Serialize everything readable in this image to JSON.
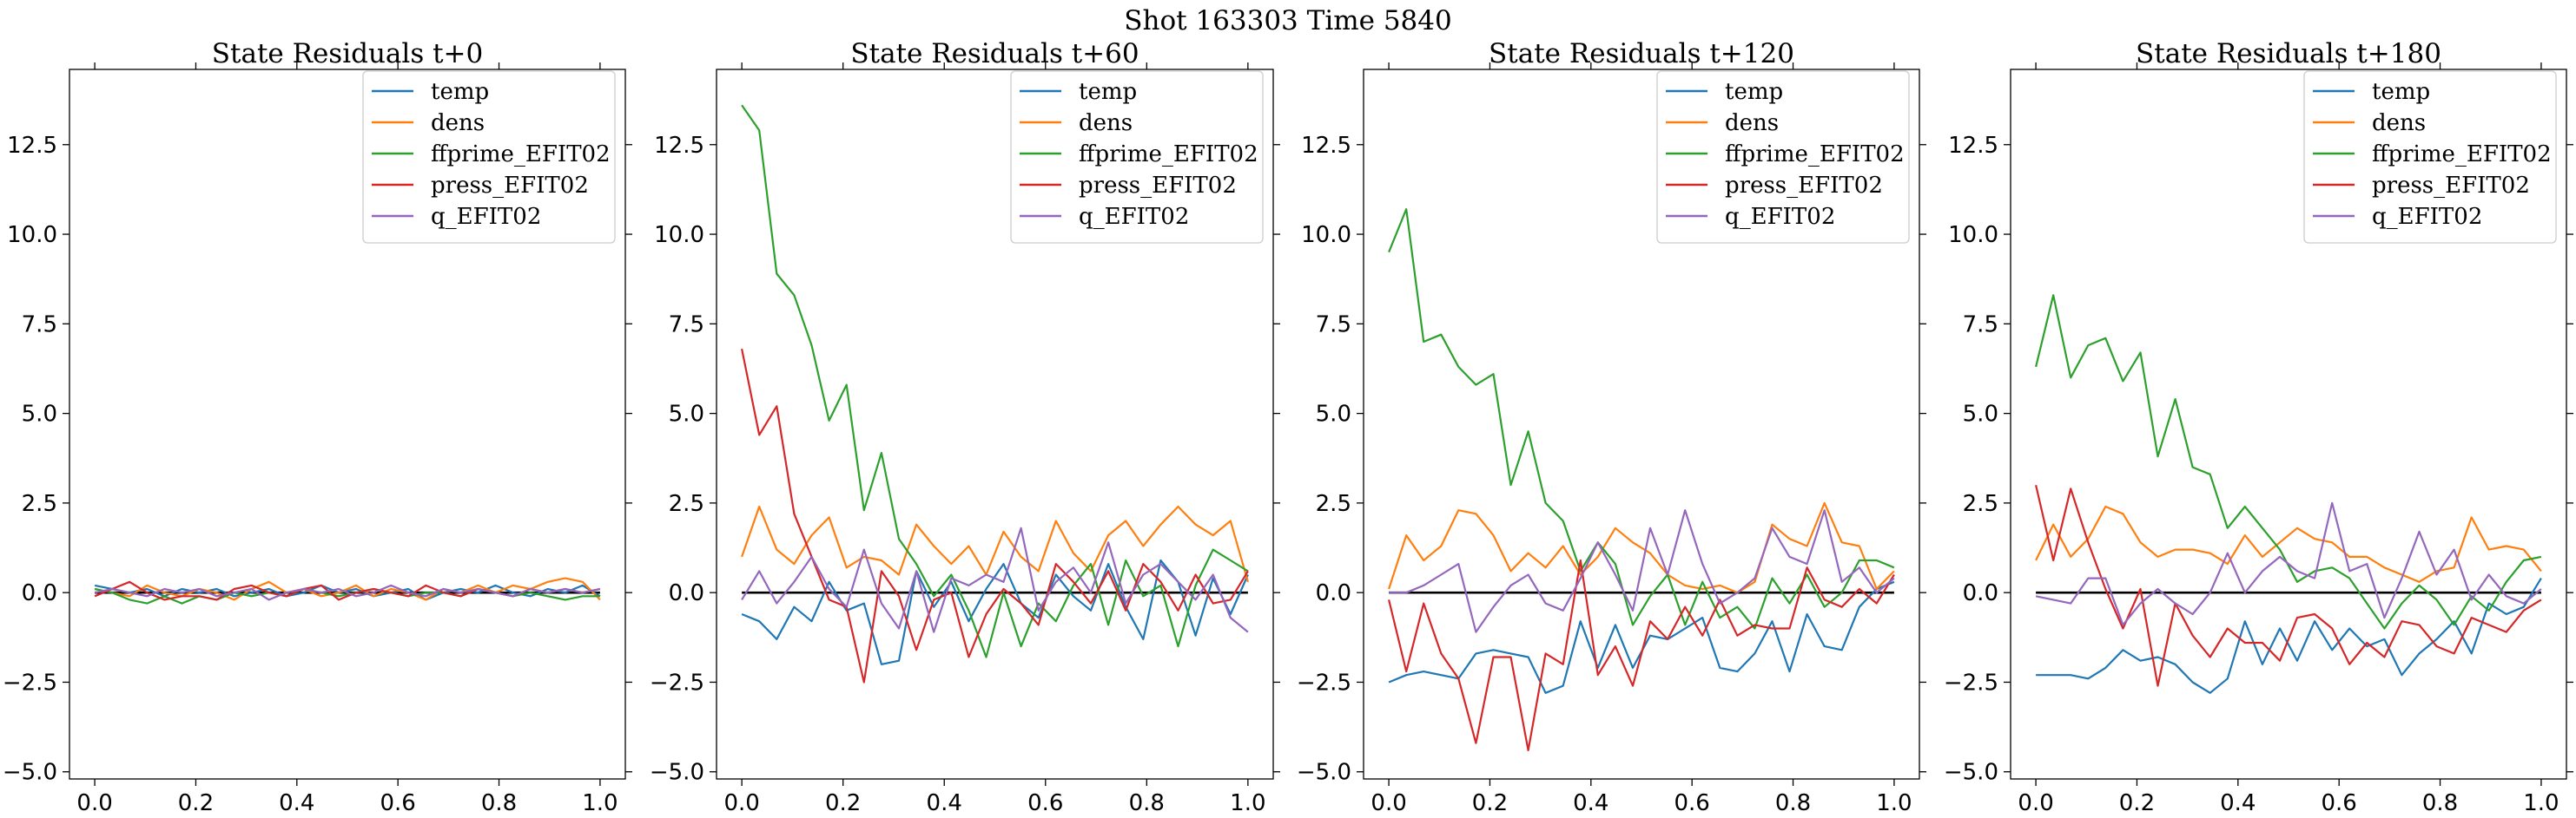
{
  "figure_title": "Shot 163303   Time 5840",
  "colors": {
    "temp": "#1f77b4",
    "dens": "#ff7f0e",
    "ffprime_EFIT02": "#2ca02c",
    "press_EFIT02": "#d62728",
    "q_EFIT02": "#9467bd",
    "zero_line": "#000000"
  },
  "chart_data": [
    {
      "type": "line",
      "title": "State Residuals t+0",
      "xlim": [
        -0.05,
        1.05
      ],
      "ylim": [
        -5.2,
        14.6
      ],
      "xticks": [
        0.0,
        0.2,
        0.4,
        0.6,
        0.8,
        1.0
      ],
      "xtick_labels": [
        "0.0",
        "0.2",
        "0.4",
        "0.6",
        "0.8",
        "1.0"
      ],
      "yticks": [
        -5.0,
        -2.5,
        0.0,
        2.5,
        5.0,
        7.5,
        10.0,
        12.5
      ],
      "ytick_labels": [
        "−5.0",
        "−2.5",
        "0.0",
        "2.5",
        "5.0",
        "7.5",
        "10.0",
        "12.5"
      ],
      "legend_position": "top-right",
      "zero_line": true,
      "x": [
        0.0,
        0.0345,
        0.069,
        0.1034,
        0.1379,
        0.1724,
        0.2069,
        0.2414,
        0.2759,
        0.3103,
        0.3448,
        0.3793,
        0.4138,
        0.4483,
        0.4828,
        0.5172,
        0.5517,
        0.5862,
        0.6207,
        0.6552,
        0.6897,
        0.7241,
        0.7586,
        0.7931,
        0.8276,
        0.8621,
        0.8966,
        0.931,
        0.9655,
        1.0
      ],
      "series": [
        {
          "name": "temp",
          "values": [
            0.2,
            0.1,
            0.0,
            0.1,
            -0.1,
            0.1,
            0.0,
            0.1,
            -0.1,
            0.0,
            0.1,
            -0.1,
            0.0,
            0.2,
            0.0,
            0.1,
            -0.1,
            0.0,
            0.1,
            -0.2,
            0.0,
            0.1,
            0.0,
            0.2,
            0.0,
            -0.1,
            0.1,
            0.0,
            0.2,
            -0.1
          ]
        },
        {
          "name": "dens",
          "values": [
            0.1,
            0.0,
            -0.1,
            0.2,
            0.0,
            -0.1,
            0.1,
            0.0,
            -0.2,
            0.1,
            0.3,
            0.0,
            0.1,
            -0.1,
            0.0,
            0.2,
            -0.1,
            0.1,
            0.0,
            -0.2,
            0.1,
            0.0,
            0.2,
            0.0,
            0.2,
            0.1,
            0.3,
            0.4,
            0.3,
            -0.2
          ]
        },
        {
          "name": "ffprime_EFIT02",
          "values": [
            0.1,
            0.0,
            -0.2,
            -0.3,
            -0.1,
            -0.3,
            -0.1,
            -0.2,
            0.0,
            -0.1,
            0.0,
            -0.1,
            0.1,
            0.0,
            -0.1,
            0.0,
            0.1,
            0.0,
            -0.1,
            0.0,
            0.0,
            -0.1,
            0.1,
            0.0,
            -0.1,
            0.0,
            -0.1,
            -0.2,
            -0.1,
            -0.1
          ]
        },
        {
          "name": "press_EFIT02",
          "values": [
            -0.1,
            0.1,
            0.3,
            0.0,
            -0.2,
            -0.1,
            -0.1,
            -0.2,
            0.1,
            0.2,
            0.0,
            -0.1,
            0.1,
            0.2,
            -0.2,
            0.0,
            0.1,
            0.0,
            -0.1,
            0.2,
            0.0,
            -0.1,
            0.1,
            0.0,
            -0.1,
            0.1,
            0.0,
            0.1,
            0.0,
            0.1
          ]
        },
        {
          "name": "q_EFIT02",
          "values": [
            0.0,
            0.1,
            0.0,
            -0.1,
            0.1,
            0.0,
            0.1,
            -0.1,
            0.0,
            0.1,
            -0.2,
            0.0,
            0.1,
            0.0,
            0.1,
            -0.1,
            0.0,
            0.2,
            0.0,
            -0.1,
            0.1,
            0.0,
            0.1,
            0.0,
            -0.1,
            0.1,
            0.0,
            0.1,
            0.0,
            0.1
          ]
        }
      ]
    },
    {
      "type": "line",
      "title": "State Residuals t+60",
      "xlim": [
        -0.05,
        1.05
      ],
      "ylim": [
        -5.2,
        14.6
      ],
      "xticks": [
        0.0,
        0.2,
        0.4,
        0.6,
        0.8,
        1.0
      ],
      "xtick_labels": [
        "0.0",
        "0.2",
        "0.4",
        "0.6",
        "0.8",
        "1.0"
      ],
      "yticks": [
        -5.0,
        -2.5,
        0.0,
        2.5,
        5.0,
        7.5,
        10.0,
        12.5
      ],
      "ytick_labels": [
        "−5.0",
        "−2.5",
        "0.0",
        "2.5",
        "5.0",
        "7.5",
        "10.0",
        "12.5"
      ],
      "legend_position": "top-right",
      "zero_line": true,
      "x": [
        0.0,
        0.0345,
        0.069,
        0.1034,
        0.1379,
        0.1724,
        0.2069,
        0.2414,
        0.2759,
        0.3103,
        0.3448,
        0.3793,
        0.4138,
        0.4483,
        0.4828,
        0.5172,
        0.5517,
        0.5862,
        0.6207,
        0.6552,
        0.6897,
        0.7241,
        0.7586,
        0.7931,
        0.8276,
        0.8621,
        0.8966,
        0.931,
        0.9655,
        1.0
      ],
      "series": [
        {
          "name": "temp",
          "values": [
            -0.6,
            -0.8,
            -1.3,
            -0.4,
            -0.8,
            0.3,
            -0.5,
            -0.3,
            -2.0,
            -1.9,
            0.6,
            -0.4,
            0.3,
            -0.8,
            0.1,
            0.8,
            -0.3,
            -0.7,
            0.5,
            -0.1,
            -0.5,
            0.8,
            -0.4,
            -1.3,
            0.9,
            0.3,
            -1.2,
            0.4,
            -0.6,
            0.5
          ]
        },
        {
          "name": "dens",
          "values": [
            1.0,
            2.4,
            1.2,
            0.8,
            1.6,
            2.1,
            0.7,
            1.0,
            0.9,
            0.5,
            1.9,
            1.3,
            0.8,
            1.3,
            0.5,
            1.7,
            1.0,
            0.6,
            2.0,
            1.1,
            0.6,
            1.6,
            2.0,
            1.3,
            1.9,
            2.4,
            1.9,
            1.6,
            2.0,
            0.3
          ]
        },
        {
          "name": "ffprime_EFIT02",
          "values": [
            13.6,
            12.9,
            8.9,
            8.3,
            6.9,
            4.8,
            5.8,
            2.3,
            3.9,
            1.5,
            0.8,
            -0.1,
            0.5,
            -0.5,
            -1.8,
            0.0,
            -1.5,
            -0.3,
            -0.8,
            0.2,
            0.8,
            -0.9,
            0.9,
            -0.1,
            0.2,
            -1.5,
            0.2,
            1.2,
            0.9,
            0.6
          ]
        },
        {
          "name": "press_EFIT02",
          "values": [
            6.8,
            4.4,
            5.2,
            2.2,
            1.0,
            -0.2,
            -0.4,
            -2.5,
            0.6,
            -0.1,
            -1.6,
            -0.2,
            0.0,
            -1.8,
            -0.6,
            0.1,
            -0.3,
            -0.9,
            0.8,
            0.3,
            -0.3,
            0.6,
            -0.5,
            0.8,
            0.3,
            -0.5,
            0.5,
            -0.3,
            -0.2,
            0.6
          ]
        },
        {
          "name": "q_EFIT02",
          "values": [
            -0.2,
            0.6,
            -0.3,
            0.3,
            1.0,
            0.1,
            -0.4,
            1.2,
            -0.3,
            -1.0,
            0.6,
            -1.1,
            0.4,
            0.2,
            0.5,
            0.3,
            1.8,
            -0.5,
            0.3,
            0.7,
            0.0,
            1.4,
            -0.3,
            0.5,
            0.8,
            0.3,
            -0.2,
            0.5,
            -0.7,
            -1.1
          ]
        }
      ]
    },
    {
      "type": "line",
      "title": "State Residuals t+120",
      "xlim": [
        -0.05,
        1.05
      ],
      "ylim": [
        -5.2,
        14.6
      ],
      "xticks": [
        0.0,
        0.2,
        0.4,
        0.6,
        0.8,
        1.0
      ],
      "xtick_labels": [
        "0.0",
        "0.2",
        "0.4",
        "0.6",
        "0.8",
        "1.0"
      ],
      "yticks": [
        -5.0,
        -2.5,
        0.0,
        2.5,
        5.0,
        7.5,
        10.0,
        12.5
      ],
      "ytick_labels": [
        "−5.0",
        "−2.5",
        "0.0",
        "2.5",
        "5.0",
        "7.5",
        "10.0",
        "12.5"
      ],
      "legend_position": "top-right",
      "zero_line": true,
      "x": [
        0.0,
        0.0345,
        0.069,
        0.1034,
        0.1379,
        0.1724,
        0.2069,
        0.2414,
        0.2759,
        0.3103,
        0.3448,
        0.3793,
        0.4138,
        0.4483,
        0.4828,
        0.5172,
        0.5517,
        0.5862,
        0.6207,
        0.6552,
        0.6897,
        0.7241,
        0.7586,
        0.7931,
        0.8276,
        0.8621,
        0.8966,
        0.931,
        0.9655,
        1.0
      ],
      "series": [
        {
          "name": "temp",
          "values": [
            -2.5,
            -2.3,
            -2.2,
            -2.3,
            -2.4,
            -1.7,
            -1.6,
            -1.7,
            -1.8,
            -2.8,
            -2.6,
            -0.8,
            -2.1,
            -0.9,
            -2.1,
            -1.2,
            -1.3,
            -1.0,
            -0.7,
            -2.1,
            -2.2,
            -1.7,
            -0.8,
            -2.2,
            -0.6,
            -1.5,
            -1.6,
            -0.4,
            0.1,
            0.3
          ]
        },
        {
          "name": "dens",
          "values": [
            0.1,
            1.6,
            0.9,
            1.3,
            2.3,
            2.2,
            1.6,
            0.6,
            1.1,
            0.7,
            1.3,
            0.5,
            1.0,
            1.8,
            1.4,
            1.1,
            0.5,
            0.2,
            0.1,
            0.2,
            0.0,
            0.3,
            1.9,
            1.5,
            1.3,
            2.5,
            1.4,
            1.3,
            0.1,
            0.6
          ]
        },
        {
          "name": "ffprime_EFIT02",
          "values": [
            9.5,
            10.7,
            7.0,
            7.2,
            6.3,
            5.8,
            6.1,
            3.0,
            4.5,
            2.5,
            2.0,
            0.6,
            1.4,
            0.8,
            -0.9,
            -0.1,
            0.5,
            -0.9,
            0.3,
            -0.7,
            -0.4,
            -1.0,
            0.4,
            -0.3,
            0.5,
            -0.4,
            0.0,
            0.9,
            0.9,
            0.7
          ]
        },
        {
          "name": "press_EFIT02",
          "values": [
            -0.2,
            -2.2,
            -0.3,
            -1.7,
            -2.4,
            -4.2,
            -1.8,
            -1.8,
            -4.4,
            -1.7,
            -2.0,
            0.9,
            -2.3,
            -1.5,
            -2.6,
            -0.8,
            -1.3,
            -0.4,
            -1.2,
            -0.2,
            -1.2,
            -0.9,
            -1.0,
            -1.0,
            0.7,
            -0.2,
            -0.4,
            0.1,
            -0.3,
            0.5
          ]
        },
        {
          "name": "q_EFIT02",
          "values": [
            0.0,
            0.0,
            0.2,
            0.5,
            0.8,
            -1.1,
            -0.4,
            0.2,
            0.5,
            -0.3,
            -0.5,
            0.4,
            1.4,
            0.5,
            -0.5,
            1.8,
            0.5,
            2.3,
            0.8,
            -0.3,
            0.0,
            0.4,
            1.8,
            1.0,
            0.8,
            2.3,
            0.3,
            0.7,
            0.0,
            0.4
          ]
        }
      ]
    },
    {
      "type": "line",
      "title": "State Residuals t+180",
      "xlim": [
        -0.05,
        1.05
      ],
      "ylim": [
        -5.2,
        14.6
      ],
      "xticks": [
        0.0,
        0.2,
        0.4,
        0.6,
        0.8,
        1.0
      ],
      "xtick_labels": [
        "0.0",
        "0.2",
        "0.4",
        "0.6",
        "0.8",
        "1.0"
      ],
      "yticks": [
        -5.0,
        -2.5,
        0.0,
        2.5,
        5.0,
        7.5,
        10.0,
        12.5
      ],
      "ytick_labels": [
        "−5.0",
        "−2.5",
        "0.0",
        "2.5",
        "5.0",
        "7.5",
        "10.0",
        "12.5"
      ],
      "legend_position": "top-right",
      "zero_line": true,
      "x": [
        0.0,
        0.0345,
        0.069,
        0.1034,
        0.1379,
        0.1724,
        0.2069,
        0.2414,
        0.2759,
        0.3103,
        0.3448,
        0.3793,
        0.4138,
        0.4483,
        0.4828,
        0.5172,
        0.5517,
        0.5862,
        0.6207,
        0.6552,
        0.6897,
        0.7241,
        0.7586,
        0.7931,
        0.8276,
        0.8621,
        0.8966,
        0.931,
        0.9655,
        1.0
      ],
      "series": [
        {
          "name": "temp",
          "values": [
            -2.3,
            -2.3,
            -2.3,
            -2.4,
            -2.1,
            -1.6,
            -1.9,
            -1.8,
            -2.0,
            -2.5,
            -2.8,
            -2.4,
            -0.8,
            -2.0,
            -1.0,
            -1.9,
            -0.8,
            -1.6,
            -1.0,
            -1.5,
            -1.3,
            -2.3,
            -1.7,
            -1.3,
            -0.8,
            -1.7,
            -0.3,
            -0.6,
            -0.4,
            0.4
          ]
        },
        {
          "name": "dens",
          "values": [
            0.9,
            1.9,
            1.0,
            1.5,
            2.4,
            2.2,
            1.4,
            1.0,
            1.2,
            1.2,
            1.1,
            0.8,
            1.6,
            1.0,
            1.4,
            1.8,
            1.5,
            1.4,
            1.0,
            1.0,
            0.7,
            0.5,
            0.3,
            0.6,
            0.7,
            2.1,
            1.2,
            1.3,
            1.2,
            0.6
          ]
        },
        {
          "name": "ffprime_EFIT02",
          "values": [
            6.3,
            8.3,
            6.0,
            6.9,
            7.1,
            5.9,
            6.7,
            3.8,
            5.4,
            3.5,
            3.3,
            1.8,
            2.4,
            1.8,
            1.2,
            0.3,
            0.6,
            0.7,
            0.4,
            -0.3,
            -1.0,
            -0.3,
            0.2,
            -0.2,
            -0.9,
            -0.1,
            -0.5,
            0.3,
            0.9,
            1.0
          ]
        },
        {
          "name": "press_EFIT02",
          "values": [
            3.0,
            0.9,
            2.9,
            1.4,
            0.1,
            -1.0,
            0.1,
            -2.6,
            -0.3,
            -1.2,
            -1.8,
            -1.0,
            -1.4,
            -1.4,
            -1.9,
            -0.7,
            -0.6,
            -1.0,
            -2.0,
            -1.4,
            -1.8,
            -0.8,
            -0.9,
            -1.5,
            -1.7,
            -0.7,
            -0.9,
            -1.1,
            -0.5,
            -0.2
          ]
        },
        {
          "name": "q_EFIT02",
          "values": [
            -0.1,
            -0.2,
            -0.3,
            0.4,
            0.4,
            -0.9,
            -0.3,
            0.1,
            -0.3,
            -0.6,
            0.0,
            1.1,
            0.0,
            0.6,
            1.0,
            0.6,
            0.4,
            2.5,
            0.6,
            0.8,
            -0.7,
            0.4,
            1.7,
            0.5,
            1.2,
            -0.2,
            0.5,
            -0.1,
            -0.3,
            0.1
          ]
        }
      ]
    }
  ]
}
